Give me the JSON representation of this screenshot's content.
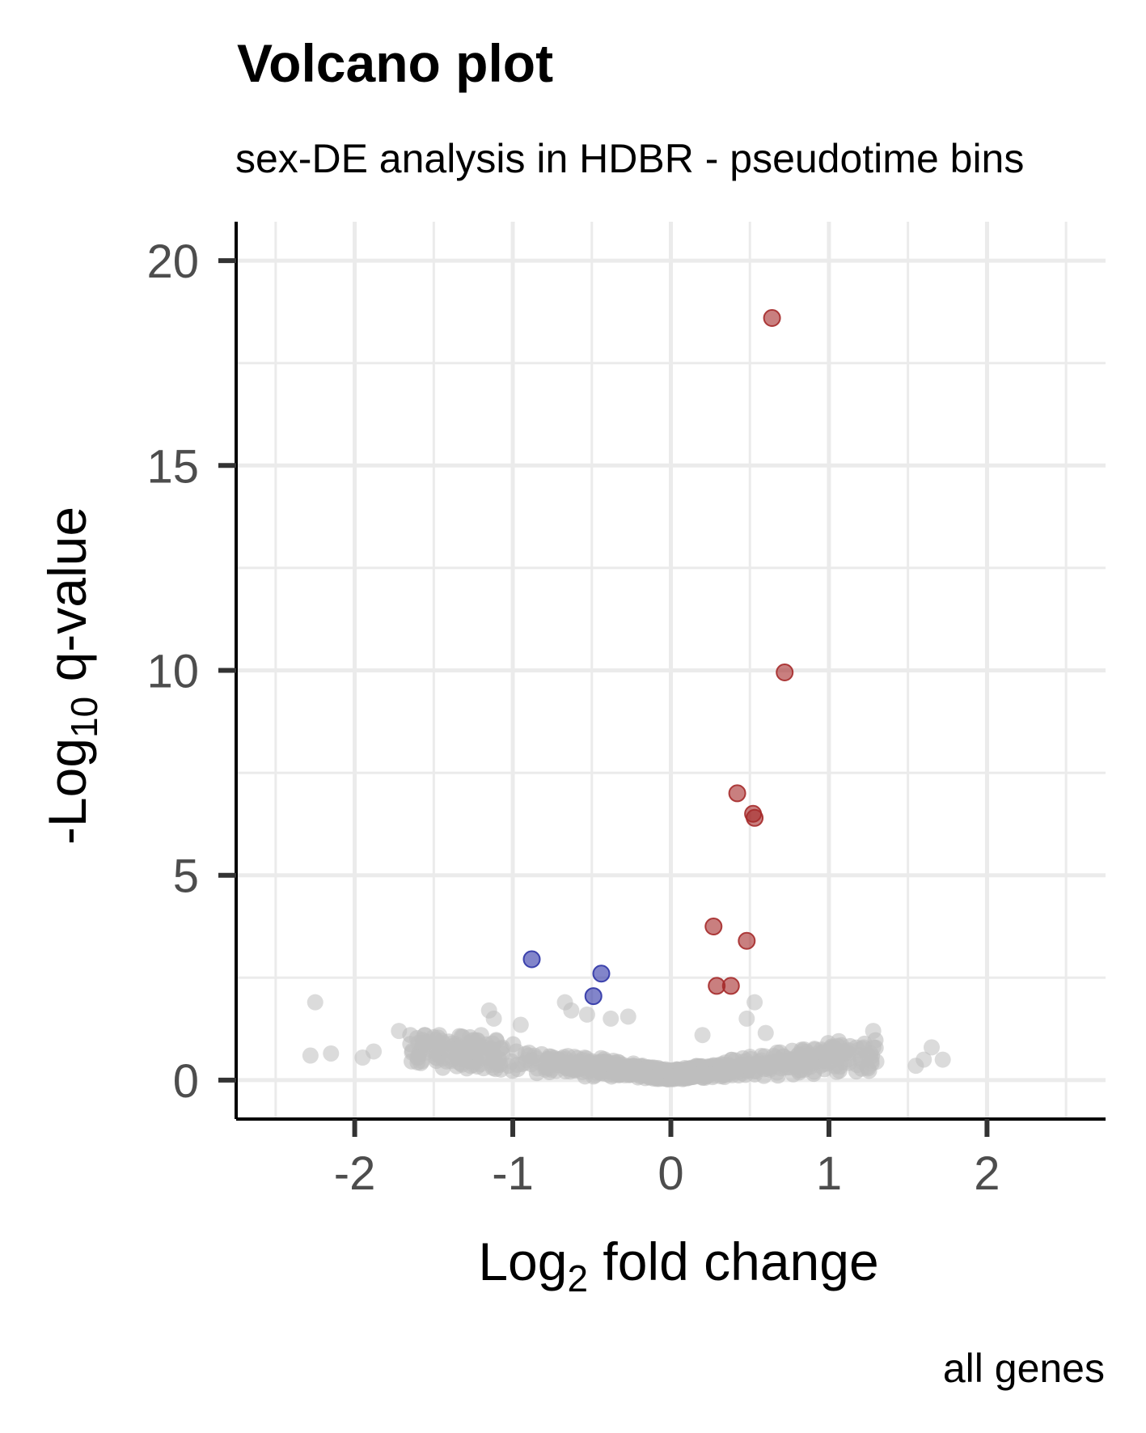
{
  "chart_data": {
    "type": "scatter",
    "title": "Volcano plot",
    "subtitle": "sex-DE analysis in HDBR - pseudotime bins",
    "xlabel": {
      "main": "Log",
      "sub": "2",
      "rest": " fold change"
    },
    "ylabel": {
      "main": "-Log",
      "sub": "10",
      "rest": " q-value"
    },
    "caption": "all genes",
    "xlim": [
      -2.75,
      2.75
    ],
    "ylim": [
      -0.95,
      20.95
    ],
    "x_ticks": [
      -2,
      -1,
      0,
      1,
      2
    ],
    "x_tick_labels": [
      "-2",
      "-1",
      "0",
      "1",
      "2"
    ],
    "y_ticks": [
      0,
      5,
      10,
      15,
      20
    ],
    "y_tick_labels": [
      "0",
      "5",
      "10",
      "15",
      "20"
    ],
    "grid": true,
    "colors": {
      "up": "#a52a2a",
      "down": "#2e34a6",
      "ns": "#bebebe",
      "axis": "#000000",
      "grid": "#ebebeb"
    },
    "series": [
      {
        "group": "up",
        "points": [
          {
            "x": 0.64,
            "y": 18.6
          },
          {
            "x": 0.72,
            "y": 9.95
          },
          {
            "x": 0.42,
            "y": 7.0
          },
          {
            "x": 0.52,
            "y": 6.5
          },
          {
            "x": 0.53,
            "y": 6.4
          },
          {
            "x": 0.27,
            "y": 3.75
          },
          {
            "x": 0.48,
            "y": 3.4
          },
          {
            "x": 0.29,
            "y": 2.3
          },
          {
            "x": 0.38,
            "y": 2.3
          }
        ]
      },
      {
        "group": "down",
        "points": [
          {
            "x": -0.88,
            "y": 2.95
          },
          {
            "x": -0.44,
            "y": 2.6
          },
          {
            "x": -0.49,
            "y": 2.05
          }
        ]
      },
      {
        "group": "ns",
        "points": [
          {
            "x": -2.25,
            "y": 1.9
          },
          {
            "x": -2.28,
            "y": 0.6
          },
          {
            "x": -2.15,
            "y": 0.65
          },
          {
            "x": -1.95,
            "y": 0.55
          },
          {
            "x": -1.88,
            "y": 0.7
          },
          {
            "x": -1.72,
            "y": 1.2
          },
          {
            "x": -1.5,
            "y": 1.05
          },
          {
            "x": -1.6,
            "y": 0.55
          },
          {
            "x": -1.2,
            "y": 1.1
          },
          {
            "x": -1.15,
            "y": 1.7
          },
          {
            "x": -1.12,
            "y": 1.5
          },
          {
            "x": -0.95,
            "y": 1.35
          },
          {
            "x": -0.67,
            "y": 1.9
          },
          {
            "x": -0.63,
            "y": 1.7
          },
          {
            "x": -0.53,
            "y": 1.6
          },
          {
            "x": -0.38,
            "y": 1.5
          },
          {
            "x": -0.27,
            "y": 1.55
          },
          {
            "x": 0.2,
            "y": 1.1
          },
          {
            "x": 0.48,
            "y": 1.5
          },
          {
            "x": 0.53,
            "y": 1.9
          },
          {
            "x": 0.6,
            "y": 1.15
          },
          {
            "x": 1.28,
            "y": 1.2
          },
          {
            "x": 1.22,
            "y": 0.8
          },
          {
            "x": 1.3,
            "y": 0.45
          },
          {
            "x": 1.6,
            "y": 0.5
          },
          {
            "x": 1.65,
            "y": 0.8
          },
          {
            "x": 1.72,
            "y": 0.5
          },
          {
            "x": 1.55,
            "y": 0.35
          },
          {
            "x": 1.05,
            "y": 0.2
          }
        ]
      }
    ]
  }
}
